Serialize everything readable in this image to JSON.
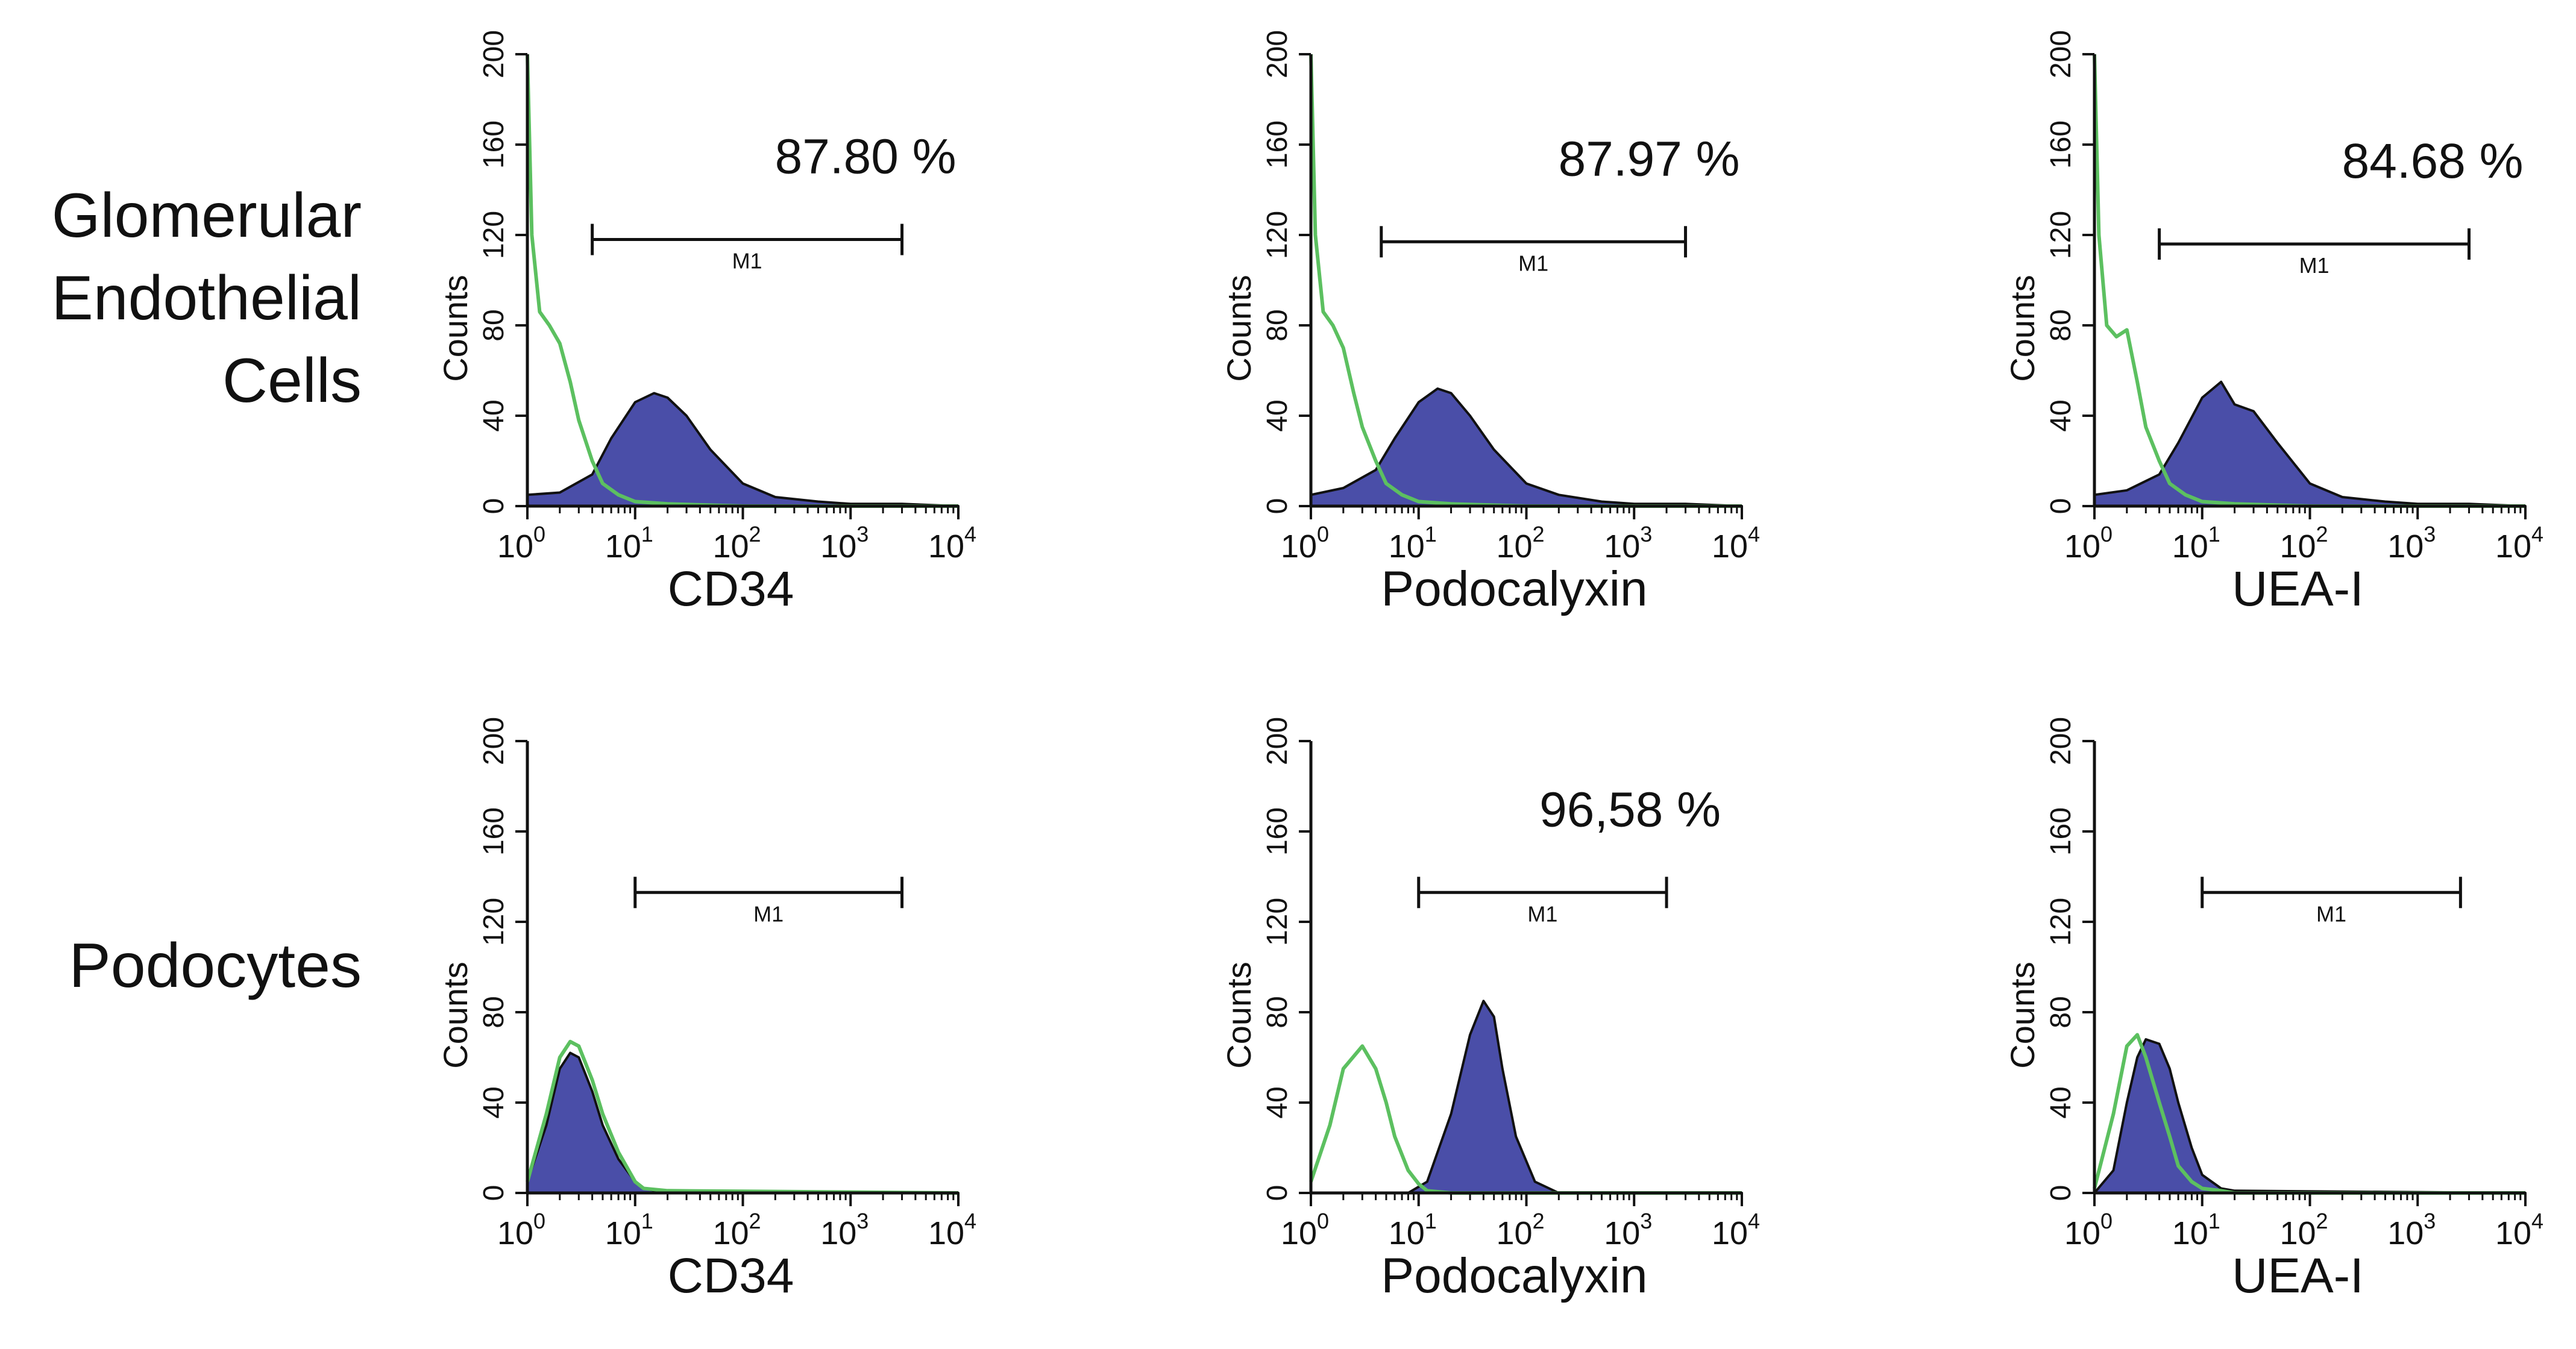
{
  "row_labels": {
    "glomerular": [
      "Glomerular",
      "Endothelial",
      "Cells"
    ],
    "podocytes": "Podocytes"
  },
  "colors": {
    "positive_fill": "#4a4ea8",
    "positive_edge": "#111111",
    "control": "#5cc060",
    "axis": "#111111"
  },
  "chart_data": [
    {
      "type": "histogram",
      "row": "Glomerular Endothelial Cells",
      "xlabel": "CD34",
      "ylabel": "Counts",
      "xscale": "log",
      "xlim": [
        1,
        10000
      ],
      "ylim": [
        0,
        200
      ],
      "yticks": [
        0,
        40,
        80,
        120,
        160,
        200
      ],
      "xticks": [
        1,
        10,
        100,
        1000,
        10000
      ],
      "xtick_labels": [
        [
          "10",
          "0"
        ],
        [
          "10",
          "1"
        ],
        [
          "10",
          "2"
        ],
        [
          "10",
          "3"
        ],
        [
          "10",
          "4"
        ]
      ],
      "gate": {
        "label": "M1",
        "start": 4,
        "end": 3000,
        "level": 118
      },
      "percentage": "87.80 %",
      "series": [
        {
          "name": "positive",
          "x": [
            1,
            2,
            4,
            6,
            10,
            15,
            20,
            30,
            50,
            100,
            200,
            500,
            1000,
            3000,
            10000
          ],
          "y": [
            5,
            6,
            14,
            30,
            46,
            50,
            48,
            40,
            25,
            10,
            4,
            2,
            1,
            1,
            0
          ]
        },
        {
          "name": "control",
          "x": [
            1,
            1.1,
            1.3,
            1.6,
            2,
            2.5,
            3,
            4,
            5,
            7,
            10,
            20,
            100,
            10000
          ],
          "y": [
            200,
            120,
            86,
            80,
            72,
            55,
            38,
            20,
            10,
            5,
            2,
            1,
            0,
            0
          ]
        }
      ]
    },
    {
      "type": "histogram",
      "row": "Glomerular Endothelial Cells",
      "xlabel": "Podocalyxin",
      "ylabel": "Counts",
      "xscale": "log",
      "xlim": [
        1,
        10000
      ],
      "ylim": [
        0,
        200
      ],
      "yticks": [
        0,
        40,
        80,
        120,
        160,
        200
      ],
      "xticks": [
        1,
        10,
        100,
        1000,
        10000
      ],
      "xtick_labels": [
        [
          "10",
          "0"
        ],
        [
          "10",
          "1"
        ],
        [
          "10",
          "2"
        ],
        [
          "10",
          "3"
        ],
        [
          "10",
          "4"
        ]
      ],
      "gate": {
        "label": "M1",
        "start": 4.5,
        "end": 3000,
        "level": 117
      },
      "percentage": "87.97 %",
      "series": [
        {
          "name": "positive",
          "x": [
            1,
            2,
            4,
            6,
            10,
            15,
            20,
            30,
            50,
            100,
            200,
            500,
            1000,
            3000,
            10000
          ],
          "y": [
            5,
            8,
            16,
            30,
            46,
            52,
            50,
            40,
            25,
            10,
            5,
            2,
            1,
            1,
            0
          ]
        },
        {
          "name": "control",
          "x": [
            1,
            1.1,
            1.3,
            1.6,
            2,
            2.5,
            3,
            4,
            5,
            7,
            10,
            20,
            100,
            10000
          ],
          "y": [
            200,
            120,
            86,
            80,
            70,
            50,
            35,
            20,
            10,
            5,
            2,
            1,
            0,
            0
          ]
        }
      ]
    },
    {
      "type": "histogram",
      "row": "Glomerular Endothelial Cells",
      "xlabel": "UEA-I",
      "ylabel": "Counts",
      "xscale": "log",
      "xlim": [
        1,
        10000
      ],
      "ylim": [
        0,
        200
      ],
      "yticks": [
        0,
        40,
        80,
        120,
        160,
        200
      ],
      "xticks": [
        1,
        10,
        100,
        1000,
        10000
      ],
      "xtick_labels": [
        [
          "10",
          "0"
        ],
        [
          "10",
          "1"
        ],
        [
          "10",
          "2"
        ],
        [
          "10",
          "3"
        ],
        [
          "10",
          "4"
        ]
      ],
      "gate": {
        "label": "M1",
        "start": 4,
        "end": 3000,
        "level": 116
      },
      "percentage": "84.68 %",
      "series": [
        {
          "name": "positive",
          "x": [
            1,
            2,
            4,
            6,
            10,
            15,
            20,
            30,
            50,
            100,
            200,
            500,
            1000,
            3000,
            10000
          ],
          "y": [
            5,
            7,
            14,
            28,
            48,
            55,
            45,
            42,
            28,
            10,
            4,
            2,
            1,
            1,
            0
          ]
        },
        {
          "name": "control",
          "x": [
            1,
            1.1,
            1.3,
            1.6,
            2,
            2.5,
            3,
            4,
            5,
            7,
            10,
            20,
            100,
            10000
          ],
          "y": [
            200,
            120,
            80,
            75,
            78,
            55,
            35,
            20,
            10,
            5,
            2,
            1,
            0,
            0
          ]
        }
      ]
    },
    {
      "type": "histogram",
      "row": "Podocytes",
      "xlabel": "CD34",
      "ylabel": "Counts",
      "xscale": "log",
      "xlim": [
        1,
        10000
      ],
      "ylim": [
        0,
        200
      ],
      "yticks": [
        0,
        40,
        80,
        120,
        160,
        200
      ],
      "xticks": [
        1,
        10,
        100,
        1000,
        10000
      ],
      "xtick_labels": [
        [
          "10",
          "0"
        ],
        [
          "10",
          "1"
        ],
        [
          "10",
          "2"
        ],
        [
          "10",
          "3"
        ],
        [
          "10",
          "4"
        ]
      ],
      "gate": {
        "label": "M1",
        "start": 10,
        "end": 3000,
        "level": 133
      },
      "percentage": "",
      "series": [
        {
          "name": "positive",
          "x": [
            1,
            1.5,
            2,
            2.5,
            3,
            4,
            5,
            7,
            10,
            12,
            20,
            10000
          ],
          "y": [
            5,
            30,
            55,
            62,
            60,
            45,
            30,
            15,
            5,
            2,
            0,
            0
          ]
        },
        {
          "name": "control",
          "x": [
            1,
            1.5,
            2,
            2.5,
            3,
            4,
            5,
            7,
            10,
            12,
            20,
            10000
          ],
          "y": [
            5,
            35,
            60,
            67,
            65,
            50,
            35,
            18,
            5,
            2,
            1,
            0
          ]
        }
      ]
    },
    {
      "type": "histogram",
      "row": "Podocytes",
      "xlabel": "Podocalyxin",
      "ylabel": "Counts",
      "xscale": "log",
      "xlim": [
        1,
        10000
      ],
      "ylim": [
        0,
        200
      ],
      "yticks": [
        0,
        40,
        80,
        120,
        160,
        200
      ],
      "xticks": [
        1,
        10,
        100,
        1000,
        10000
      ],
      "xtick_labels": [
        [
          "10",
          "0"
        ],
        [
          "10",
          "1"
        ],
        [
          "10",
          "2"
        ],
        [
          "10",
          "3"
        ],
        [
          "10",
          "4"
        ]
      ],
      "gate": {
        "label": "M1",
        "start": 10,
        "end": 2000,
        "level": 133
      },
      "percentage": "96,58 %",
      "series": [
        {
          "name": "positive",
          "x": [
            1,
            8,
            12,
            20,
            30,
            40,
            50,
            60,
            80,
            120,
            200,
            10000
          ],
          "y": [
            0,
            0,
            5,
            35,
            70,
            85,
            78,
            55,
            25,
            5,
            0,
            0
          ]
        },
        {
          "name": "control",
          "x": [
            1,
            1.5,
            2,
            3,
            4,
            5,
            6,
            8,
            10,
            12,
            20,
            10000
          ],
          "y": [
            5,
            30,
            55,
            65,
            55,
            40,
            25,
            10,
            4,
            1,
            0,
            0
          ]
        }
      ]
    },
    {
      "type": "histogram",
      "row": "Podocytes",
      "xlabel": "UEA-I",
      "ylabel": "Counts",
      "xscale": "log",
      "xlim": [
        1,
        10000
      ],
      "ylim": [
        0,
        200
      ],
      "yticks": [
        0,
        40,
        80,
        120,
        160,
        200
      ],
      "xticks": [
        1,
        10,
        100,
        1000,
        10000
      ],
      "xtick_labels": [
        [
          "10",
          "0"
        ],
        [
          "10",
          "1"
        ],
        [
          "10",
          "2"
        ],
        [
          "10",
          "3"
        ],
        [
          "10",
          "4"
        ]
      ],
      "gate": {
        "label": "M1",
        "start": 10,
        "end": 2500,
        "level": 133
      },
      "percentage": "",
      "series": [
        {
          "name": "positive",
          "x": [
            1,
            1.5,
            2,
            2.5,
            3,
            4,
            5,
            6,
            8,
            10,
            15,
            20,
            10000
          ],
          "y": [
            0,
            10,
            40,
            60,
            68,
            66,
            55,
            40,
            20,
            8,
            2,
            1,
            0
          ]
        },
        {
          "name": "control",
          "x": [
            1,
            1.5,
            2,
            2.5,
            3,
            4,
            5,
            6,
            8,
            10,
            15,
            20,
            10000
          ],
          "y": [
            2,
            35,
            65,
            70,
            60,
            40,
            25,
            12,
            5,
            2,
            1,
            0,
            0
          ]
        }
      ]
    }
  ]
}
